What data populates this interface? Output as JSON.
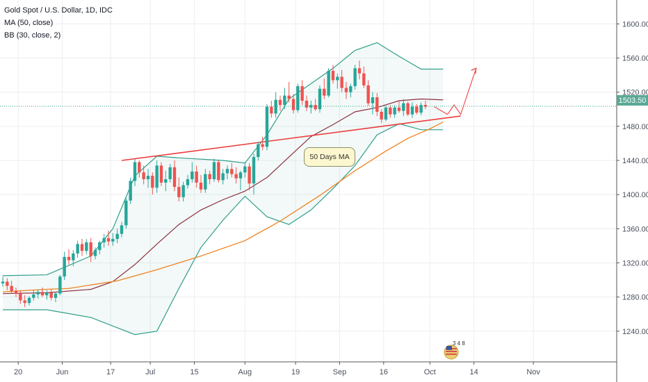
{
  "legend": {
    "title": "Gold Spot / U.S. Dollar, 1D, IDC",
    "ma": "MA (50, close)",
    "bb": "BB (30, close, 2)"
  },
  "last_price": "1503.50",
  "callout": "50 Days MA",
  "badge_text": "3 4 8",
  "colors": {
    "up": "#26a69a",
    "down": "#ef5350",
    "bb_band": "#2e9e8a",
    "bb_basis": "#8a2f3c",
    "ma": "#f08a2b",
    "trendline": "#ec3b3b",
    "projection": "#f05252",
    "price_line": "#2e9e8a"
  },
  "chart_data": {
    "type": "candlestick",
    "title": "Gold Spot / U.S. Dollar, 1D, IDC",
    "ylim": [
      1204,
      1628
    ],
    "y_ticks": [
      1240,
      1280,
      1320,
      1360,
      1400,
      1440,
      1480,
      1520,
      1560,
      1600
    ],
    "y_tick_labels": [
      "1240.00",
      "1280.00",
      "1320.00",
      "1360.00",
      "1400.00",
      "1440.00",
      "1480.00",
      "1520.00",
      "1560.00",
      "1600.00"
    ],
    "x_tick_labels": [
      "20",
      "Jun",
      "17",
      "Jul",
      "15",
      "Aug",
      "19",
      "Sep",
      "16",
      "Oct",
      "14",
      "Nov"
    ],
    "x_tick_bar_index": [
      3.5,
      13.5,
      24.5,
      33.5,
      43.5,
      55,
      66.5,
      76.5,
      86.5,
      97,
      107,
      120.5
    ],
    "candles": [
      [
        1296,
        1304,
        1292,
        1298
      ],
      [
        1298,
        1302,
        1288,
        1293
      ],
      [
        1293,
        1299,
        1284,
        1287
      ],
      [
        1287,
        1291,
        1280,
        1284
      ],
      [
        1284,
        1288,
        1272,
        1276
      ],
      [
        1276,
        1282,
        1268,
        1273
      ],
      [
        1273,
        1281,
        1270,
        1279
      ],
      [
        1279,
        1288,
        1276,
        1283
      ],
      [
        1283,
        1289,
        1278,
        1286
      ],
      [
        1286,
        1291,
        1280,
        1282
      ],
      [
        1282,
        1288,
        1277,
        1285
      ],
      [
        1285,
        1289,
        1276,
        1279
      ],
      [
        1279,
        1286,
        1274,
        1284
      ],
      [
        1284,
        1306,
        1282,
        1304
      ],
      [
        1304,
        1333,
        1300,
        1327
      ],
      [
        1327,
        1336,
        1318,
        1323
      ],
      [
        1323,
        1335,
        1316,
        1331
      ],
      [
        1331,
        1346,
        1326,
        1342
      ],
      [
        1342,
        1348,
        1328,
        1334
      ],
      [
        1334,
        1348,
        1330,
        1344
      ],
      [
        1344,
        1349,
        1321,
        1328
      ],
      [
        1328,
        1338,
        1324,
        1335
      ],
      [
        1335,
        1346,
        1330,
        1344
      ],
      [
        1344,
        1354,
        1338,
        1349
      ],
      [
        1349,
        1358,
        1340,
        1345
      ],
      [
        1345,
        1355,
        1340,
        1348
      ],
      [
        1348,
        1360,
        1343,
        1354
      ],
      [
        1354,
        1368,
        1350,
        1364
      ],
      [
        1364,
        1396,
        1360,
        1393
      ],
      [
        1393,
        1420,
        1389,
        1416
      ],
      [
        1416,
        1442,
        1410,
        1438
      ],
      [
        1438,
        1440,
        1420,
        1426
      ],
      [
        1426,
        1434,
        1412,
        1418
      ],
      [
        1418,
        1430,
        1408,
        1422
      ],
      [
        1422,
        1426,
        1400,
        1408
      ],
      [
        1408,
        1440,
        1402,
        1434
      ],
      [
        1434,
        1438,
        1410,
        1414
      ],
      [
        1414,
        1428,
        1404,
        1418
      ],
      [
        1418,
        1436,
        1414,
        1432
      ],
      [
        1432,
        1440,
        1404,
        1409
      ],
      [
        1409,
        1420,
        1392,
        1397
      ],
      [
        1397,
        1415,
        1392,
        1411
      ],
      [
        1411,
        1423,
        1407,
        1418
      ],
      [
        1418,
        1438,
        1414,
        1427
      ],
      [
        1427,
        1434,
        1408,
        1414
      ],
      [
        1414,
        1423,
        1402,
        1406
      ],
      [
        1406,
        1430,
        1402,
        1424
      ],
      [
        1424,
        1428,
        1412,
        1418
      ],
      [
        1418,
        1442,
        1415,
        1438
      ],
      [
        1438,
        1440,
        1414,
        1417
      ],
      [
        1417,
        1430,
        1412,
        1425
      ],
      [
        1425,
        1434,
        1418,
        1430
      ],
      [
        1430,
        1437,
        1420,
        1424
      ],
      [
        1424,
        1432,
        1413,
        1419
      ],
      [
        1419,
        1428,
        1405,
        1426
      ],
      [
        1426,
        1438,
        1420,
        1433
      ],
      [
        1433,
        1437,
        1405,
        1413
      ],
      [
        1413,
        1448,
        1400,
        1444
      ],
      [
        1444,
        1462,
        1440,
        1459
      ],
      [
        1459,
        1468,
        1452,
        1456
      ],
      [
        1456,
        1506,
        1452,
        1503
      ],
      [
        1503,
        1510,
        1490,
        1495
      ],
      [
        1495,
        1520,
        1490,
        1511
      ],
      [
        1511,
        1516,
        1498,
        1505
      ],
      [
        1505,
        1525,
        1500,
        1516
      ],
      [
        1516,
        1532,
        1508,
        1512
      ],
      [
        1512,
        1518,
        1495,
        1499
      ],
      [
        1499,
        1530,
        1496,
        1527
      ],
      [
        1527,
        1534,
        1505,
        1510
      ],
      [
        1510,
        1516,
        1498,
        1502
      ],
      [
        1502,
        1510,
        1495,
        1505
      ],
      [
        1505,
        1512,
        1498,
        1500
      ],
      [
        1500,
        1528,
        1496,
        1524
      ],
      [
        1524,
        1536,
        1512,
        1516
      ],
      [
        1516,
        1548,
        1514,
        1545
      ],
      [
        1545,
        1552,
        1530,
        1534
      ],
      [
        1534,
        1542,
        1524,
        1538
      ],
      [
        1538,
        1546,
        1520,
        1525
      ],
      [
        1525,
        1532,
        1512,
        1520
      ],
      [
        1520,
        1530,
        1514,
        1527
      ],
      [
        1527,
        1552,
        1523,
        1548
      ],
      [
        1548,
        1557,
        1535,
        1542
      ],
      [
        1542,
        1550,
        1525,
        1528
      ],
      [
        1528,
        1534,
        1504,
        1507
      ],
      [
        1507,
        1520,
        1494,
        1514
      ],
      [
        1514,
        1519,
        1492,
        1497
      ],
      [
        1497,
        1500,
        1484,
        1488
      ],
      [
        1488,
        1504,
        1486,
        1502
      ],
      [
        1502,
        1505,
        1490,
        1494
      ],
      [
        1494,
        1505,
        1490,
        1502
      ],
      [
        1502,
        1510,
        1496,
        1498
      ],
      [
        1498,
        1512,
        1492,
        1507
      ],
      [
        1507,
        1509,
        1492,
        1494
      ],
      [
        1494,
        1508,
        1490,
        1503
      ],
      [
        1503,
        1506,
        1494,
        1496
      ],
      [
        1496,
        1508,
        1493,
        1505
      ],
      [
        1505,
        1510,
        1500,
        1503
      ]
    ],
    "ma50": [
      [
        0,
        1286
      ],
      [
        10,
        1289
      ],
      [
        15,
        1290
      ],
      [
        26,
        1299
      ],
      [
        35,
        1312
      ],
      [
        45,
        1328
      ],
      [
        55,
        1346
      ],
      [
        63,
        1369
      ],
      [
        72,
        1399
      ],
      [
        80,
        1428
      ],
      [
        87,
        1451
      ],
      [
        92,
        1466
      ],
      [
        97,
        1477
      ],
      [
        100,
        1485
      ]
    ],
    "bb_upper": [
      [
        0,
        1305
      ],
      [
        10,
        1306
      ],
      [
        20,
        1328
      ],
      [
        25,
        1360
      ],
      [
        30,
        1422
      ],
      [
        35,
        1445
      ],
      [
        40,
        1443
      ],
      [
        50,
        1440
      ],
      [
        55,
        1437
      ],
      [
        60,
        1470
      ],
      [
        65,
        1512
      ],
      [
        70,
        1530
      ],
      [
        75,
        1548
      ],
      [
        80,
        1569
      ],
      [
        85,
        1578
      ],
      [
        90,
        1562
      ],
      [
        95,
        1547
      ],
      [
        100,
        1547
      ]
    ],
    "bb_basis": [
      [
        0,
        1284
      ],
      [
        10,
        1285
      ],
      [
        20,
        1289
      ],
      [
        25,
        1298
      ],
      [
        30,
        1318
      ],
      [
        35,
        1342
      ],
      [
        40,
        1365
      ],
      [
        45,
        1382
      ],
      [
        50,
        1394
      ],
      [
        55,
        1404
      ],
      [
        60,
        1420
      ],
      [
        65,
        1444
      ],
      [
        70,
        1468
      ],
      [
        75,
        1482
      ],
      [
        80,
        1497
      ],
      [
        85,
        1502
      ],
      [
        90,
        1510
      ],
      [
        95,
        1512
      ],
      [
        100,
        1511
      ]
    ],
    "bb_lower": [
      [
        0,
        1265
      ],
      [
        10,
        1265
      ],
      [
        20,
        1256
      ],
      [
        25,
        1246
      ],
      [
        30,
        1236
      ],
      [
        35,
        1240
      ],
      [
        40,
        1290
      ],
      [
        45,
        1338
      ],
      [
        50,
        1370
      ],
      [
        55,
        1398
      ],
      [
        60,
        1374
      ],
      [
        65,
        1365
      ],
      [
        70,
        1382
      ],
      [
        75,
        1407
      ],
      [
        80,
        1434
      ],
      [
        85,
        1470
      ],
      [
        90,
        1483
      ],
      [
        95,
        1476
      ],
      [
        100,
        1476
      ]
    ],
    "trendline": [
      [
        27,
        1440
      ],
      [
        104,
        1492
      ]
    ],
    "projection": [
      [
        98,
        1503
      ],
      [
        101,
        1494
      ],
      [
        102.5,
        1505
      ],
      [
        104,
        1494
      ],
      [
        107.5,
        1548
      ]
    ],
    "current_price_line": 1503.5,
    "annotations": [
      "50 Days MA"
    ]
  }
}
